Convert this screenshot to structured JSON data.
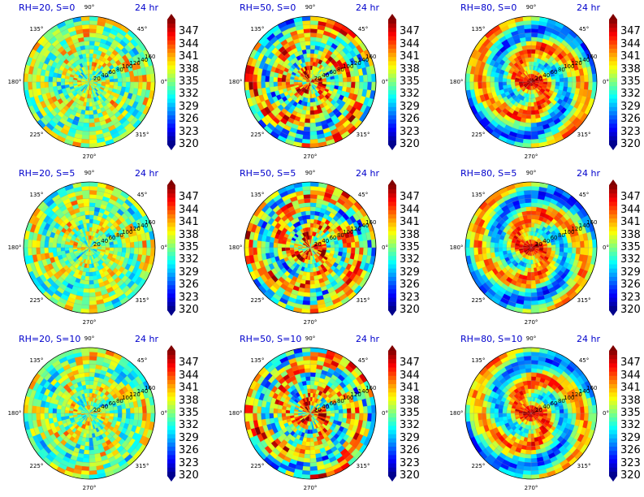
{
  "chart_data": [
    {
      "type": "heatmap",
      "subtype": "polar",
      "title_left": "RH=20, S=0",
      "title_right": "24 hr",
      "field": "uniform",
      "seed": 11
    },
    {
      "type": "heatmap",
      "subtype": "polar",
      "title_left": "RH=50, S=0",
      "title_right": "24 hr",
      "field": "spiral-moderate",
      "seed": 23
    },
    {
      "type": "heatmap",
      "subtype": "polar",
      "title_left": "RH=80, S=0",
      "title_right": "24 hr",
      "field": "vortex-strong",
      "seed": 37
    },
    {
      "type": "heatmap",
      "subtype": "polar",
      "title_left": "RH=20, S=5",
      "title_right": "24 hr",
      "field": "uniform",
      "seed": 41
    },
    {
      "type": "heatmap",
      "subtype": "polar",
      "title_left": "RH=50, S=5",
      "title_right": "24 hr",
      "field": "spiral-moderate",
      "seed": 53
    },
    {
      "type": "heatmap",
      "subtype": "polar",
      "title_left": "RH=80, S=5",
      "title_right": "24 hr",
      "field": "vortex-strong",
      "seed": 67
    },
    {
      "type": "heatmap",
      "subtype": "polar",
      "title_left": "RH=20, S=10",
      "title_right": "24 hr",
      "field": "uniform",
      "seed": 71
    },
    {
      "type": "heatmap",
      "subtype": "polar",
      "title_left": "RH=50, S=10",
      "title_right": "24 hr",
      "field": "spiral-moderate",
      "seed": 83
    },
    {
      "type": "heatmap",
      "subtype": "polar",
      "title_left": "RH=80, S=10",
      "title_right": "24 hr",
      "field": "vortex-strong",
      "seed": 97
    }
  ],
  "angle_labels": [
    "0°",
    "45°",
    "90°",
    "135°",
    "180°",
    "225°",
    "270°",
    "315°"
  ],
  "radial_ticks": [
    "20",
    "40",
    "60",
    "80",
    "100",
    "120",
    "140",
    "160"
  ],
  "colorbar": {
    "ticks": [
      "347",
      "344",
      "341",
      "338",
      "335",
      "332",
      "329",
      "326",
      "323",
      "320"
    ],
    "min": 320,
    "max": 350,
    "colormap": "jet"
  }
}
